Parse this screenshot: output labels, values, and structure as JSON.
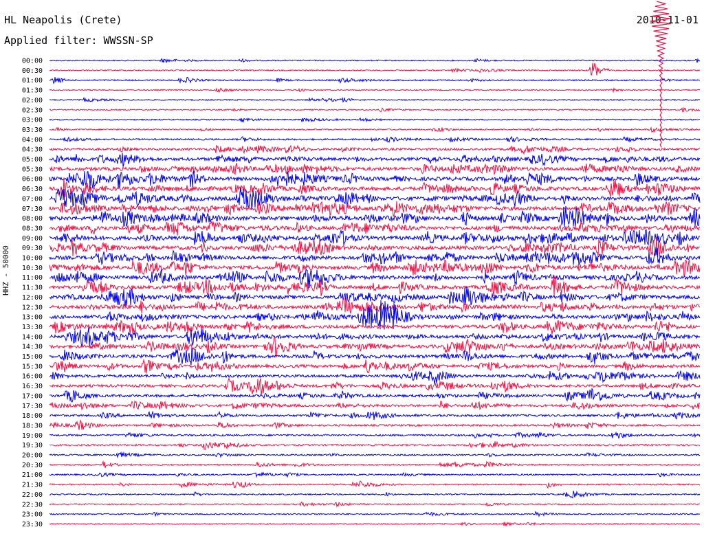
{
  "header": {
    "station": "HL Neapolis (Crete)",
    "filter": "Applied filter: WWSSN-SP",
    "date": "2010-11-01"
  },
  "chart_data": {
    "type": "line",
    "title": "HL Neapolis (Crete)",
    "subtitle": "Applied filter: WWSSN-SP",
    "date": "2010-11-01",
    "ylabel": "HHZ - 50000",
    "colors": [
      "#0000ee",
      "#ee1144"
    ],
    "row_labels": [
      "00:00",
      "00:30",
      "01:00",
      "01:30",
      "02:00",
      "02:30",
      "03:00",
      "03:30",
      "04:00",
      "04:30",
      "05:00",
      "05:30",
      "06:00",
      "06:30",
      "07:00",
      "07:30",
      "08:00",
      "08:30",
      "09:00",
      "09:30",
      "10:00",
      "10:30",
      "11:00",
      "11:30",
      "12:00",
      "12:30",
      "13:00",
      "13:30",
      "14:00",
      "14:30",
      "15:00",
      "15:30",
      "16:00",
      "16:30",
      "17:00",
      "17:30",
      "18:00",
      "18:30",
      "19:00",
      "19:30",
      "20:00",
      "20:30",
      "21:00",
      "21:30",
      "22:00",
      "22:30",
      "23:00",
      "23:30"
    ],
    "row_activity": [
      0.1,
      0.1,
      0.15,
      0.1,
      0.1,
      0.1,
      0.12,
      0.15,
      0.25,
      0.45,
      0.7,
      0.85,
      0.9,
      0.9,
      0.95,
      0.95,
      0.95,
      0.9,
      0.95,
      0.95,
      0.9,
      0.9,
      0.9,
      0.85,
      0.85,
      0.8,
      0.85,
      0.85,
      0.8,
      0.8,
      0.75,
      0.7,
      0.65,
      0.6,
      0.55,
      0.5,
      0.4,
      0.35,
      0.3,
      0.25,
      0.2,
      0.2,
      0.2,
      0.2,
      0.15,
      0.12,
      0.12,
      0.1
    ],
    "events": [
      {
        "row": 0,
        "minute": 8.8,
        "amp": 0.4
      },
      {
        "row": 1,
        "minute": 25.0,
        "amp": 3.0
      },
      {
        "row": 2,
        "minute": 0.2,
        "amp": 1.0
      },
      {
        "row": 2,
        "minute": 6.0,
        "amp": 0.5
      },
      {
        "row": 2,
        "minute": 10.5,
        "amp": 0.4
      },
      {
        "row": 4,
        "minute": 13.5,
        "amp": 0.4
      },
      {
        "row": 7,
        "minute": 7.0,
        "amp": 0.4
      },
      {
        "row": 7,
        "minute": 18.0,
        "amp": 0.4
      },
      {
        "row": 7,
        "minute": 22.0,
        "amp": 0.5
      },
      {
        "row": 20,
        "minute": 25.0,
        "amp": 0.5
      },
      {
        "row": 25,
        "minute": 5.0,
        "amp": 0.4
      },
      {
        "row": 34,
        "minute": 13.5,
        "amp": 0.7
      },
      {
        "row": 39,
        "minute": 20.5,
        "amp": 0.6
      },
      {
        "row": 41,
        "minute": 2.5,
        "amp": 0.9
      },
      {
        "row": 42,
        "minute": 11.0,
        "amp": 0.4
      },
      {
        "row": 43,
        "minute": 8.5,
        "amp": 1.0
      },
      {
        "row": 43,
        "minute": 23.0,
        "amp": 0.8
      }
    ]
  }
}
